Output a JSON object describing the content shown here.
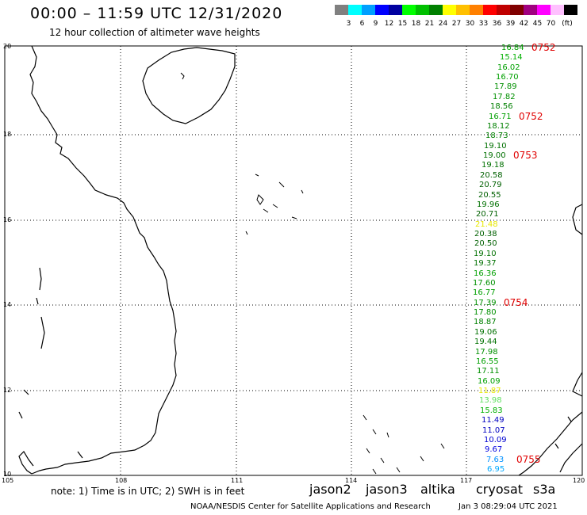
{
  "title": "00:00 – 11:59 UTC 12/31/2020",
  "subtitle": "12 hour collection of altimeter wave heights",
  "legend": {
    "colors": [
      "#808080",
      "#00ffff",
      "#00a0ff",
      "#0000ff",
      "#0000a0",
      "#00ff00",
      "#00c000",
      "#008000",
      "#ffff00",
      "#ffc000",
      "#ff8000",
      "#ff0000",
      "#c00000",
      "#800000",
      "#a00080",
      "#ff00ff",
      "#ffc0ff",
      "#000000"
    ],
    "labels": [
      "3",
      "6",
      "9",
      "12",
      "15",
      "18",
      "21",
      "24",
      "27",
      "30",
      "33",
      "36",
      "39",
      "42",
      "45",
      "70"
    ],
    "unit": "(ft)"
  },
  "axes": {
    "y_ticks": [
      "20",
      "18",
      "16",
      "14",
      "12",
      "10"
    ],
    "x_ticks": [
      "105",
      "108",
      "111",
      "114",
      "117",
      "120"
    ]
  },
  "wave_heights": [
    {
      "value": "16.84",
      "color": "#00a000"
    },
    {
      "value": "15.14",
      "color": "#00b000"
    },
    {
      "value": "16.02",
      "color": "#00a000"
    },
    {
      "value": "16.70",
      "color": "#00a000"
    },
    {
      "value": "17.89",
      "color": "#009000"
    },
    {
      "value": "17.82",
      "color": "#009000"
    },
    {
      "value": "18.56",
      "color": "#008000"
    },
    {
      "value": "16.71",
      "color": "#00a000"
    },
    {
      "value": "18.12",
      "color": "#008000"
    },
    {
      "value": "18.73",
      "color": "#008000"
    },
    {
      "value": "19.10",
      "color": "#007000"
    },
    {
      "value": "19.00",
      "color": "#007000"
    },
    {
      "value": "19.18",
      "color": "#007000"
    },
    {
      "value": "20.58",
      "color": "#006000"
    },
    {
      "value": "20.79",
      "color": "#006000"
    },
    {
      "value": "20.55",
      "color": "#006000"
    },
    {
      "value": "19.96",
      "color": "#007000"
    },
    {
      "value": "20.71",
      "color": "#006000"
    },
    {
      "value": "21.48",
      "color": "#e8e800"
    },
    {
      "value": "20.38",
      "color": "#006000"
    },
    {
      "value": "20.50",
      "color": "#006000"
    },
    {
      "value": "19.10",
      "color": "#007000"
    },
    {
      "value": "19.37",
      "color": "#007000"
    },
    {
      "value": "16.36",
      "color": "#00a000"
    },
    {
      "value": "17.60",
      "color": "#009000"
    },
    {
      "value": "16.77",
      "color": "#00a000"
    },
    {
      "value": "17.39",
      "color": "#009000"
    },
    {
      "value": "17.80",
      "color": "#009000"
    },
    {
      "value": "18.87",
      "color": "#008000"
    },
    {
      "value": "19.06",
      "color": "#007000"
    },
    {
      "value": "19.44",
      "color": "#007000"
    },
    {
      "value": "17.98",
      "color": "#009000"
    },
    {
      "value": "16.55",
      "color": "#00a000"
    },
    {
      "value": "17.11",
      "color": "#009000"
    },
    {
      "value": "16.09",
      "color": "#00a000"
    },
    {
      "value": "11.87",
      "color": "#e8e800"
    },
    {
      "value": "13.98",
      "color": "#60e060"
    },
    {
      "value": "15.83",
      "color": "#00b000"
    },
    {
      "value": "11.49",
      "color": "#0000c0"
    },
    {
      "value": "11.07",
      "color": "#0000c0"
    },
    {
      "value": "10.09",
      "color": "#0000d0"
    },
    {
      "value": "9.67",
      "color": "#0000e0"
    },
    {
      "value": "7.63",
      "color": "#0090ff"
    },
    {
      "value": "6.95",
      "color": "#00a8ff"
    }
  ],
  "time_labels": [
    {
      "text": "0752",
      "row": 0
    },
    {
      "text": "0752",
      "row": 7
    },
    {
      "text": "0753",
      "row": 11
    },
    {
      "text": "0754",
      "row": 26
    },
    {
      "text": "0755",
      "row": 42
    }
  ],
  "footer": {
    "note": "note: 1) Time is in UTC; 2) SWH is in feet",
    "satellites": [
      {
        "name": "jason2",
        "color": "#0000ff"
      },
      {
        "name": "jason3",
        "color": "#00a000"
      },
      {
        "name": "altika",
        "color": "#ff8000"
      },
      {
        "name": "cryosat",
        "color": "#ff0000"
      },
      {
        "name": "s3a",
        "color": "#c00000"
      }
    ],
    "credit": "NOAA/NESDIS Center for Satellite Applications and Research",
    "timestamp": "Jan  3 08:29:04 UTC 2021"
  }
}
